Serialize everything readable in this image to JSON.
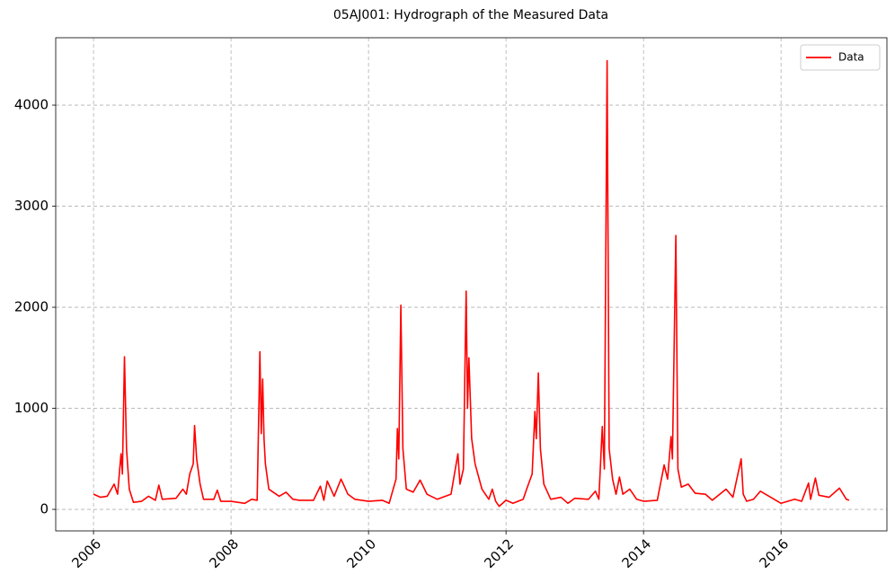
{
  "chart_data": {
    "type": "line",
    "title": "05AJ001: Hydrograph of the Measured Data",
    "x": [
      2006.0,
      2006.1,
      2006.2,
      2006.3,
      2006.35,
      2006.4,
      2006.42,
      2006.45,
      2006.48,
      2006.52,
      2006.58,
      2006.7,
      2006.8,
      2006.9,
      2006.95,
      2007.0,
      2007.2,
      2007.3,
      2007.35,
      2007.4,
      2007.45,
      2007.47,
      2007.5,
      2007.55,
      2007.6,
      2007.75,
      2007.8,
      2007.85,
      2008.0,
      2008.2,
      2008.3,
      2008.38,
      2008.42,
      2008.44,
      2008.46,
      2008.48,
      2008.5,
      2008.55,
      2008.7,
      2008.8,
      2008.9,
      2009.0,
      2009.2,
      2009.3,
      2009.35,
      2009.4,
      2009.5,
      2009.6,
      2009.7,
      2009.8,
      2010.0,
      2010.2,
      2010.3,
      2010.4,
      2010.42,
      2010.44,
      2010.47,
      2010.5,
      2010.55,
      2010.65,
      2010.75,
      2010.85,
      2011.0,
      2011.2,
      2011.3,
      2011.33,
      2011.38,
      2011.42,
      2011.44,
      2011.46,
      2011.5,
      2011.55,
      2011.65,
      2011.75,
      2011.8,
      2011.85,
      2011.9,
      2012.0,
      2012.1,
      2012.25,
      2012.3,
      2012.38,
      2012.42,
      2012.44,
      2012.47,
      2012.5,
      2012.55,
      2012.65,
      2012.8,
      2012.9,
      2013.0,
      2013.2,
      2013.3,
      2013.35,
      2013.4,
      2013.43,
      2013.47,
      2013.5,
      2013.55,
      2013.6,
      2013.65,
      2013.7,
      2013.8,
      2013.9,
      2014.0,
      2014.2,
      2014.3,
      2014.35,
      2014.4,
      2014.42,
      2014.47,
      2014.5,
      2014.55,
      2014.65,
      2014.75,
      2014.9,
      2015.0,
      2015.2,
      2015.3,
      2015.42,
      2015.45,
      2015.5,
      2015.6,
      2015.7,
      2015.8,
      2016.0,
      2016.2,
      2016.3,
      2016.4,
      2016.43,
      2016.5,
      2016.55,
      2016.7,
      2016.85,
      2016.95,
      2016.99
    ],
    "series": [
      {
        "name": "Data",
        "color": "#ff0000",
        "values": [
          150,
          120,
          130,
          250,
          150,
          550,
          350,
          1510,
          600,
          200,
          70,
          80,
          130,
          90,
          240,
          100,
          110,
          200,
          150,
          350,
          450,
          830,
          500,
          250,
          100,
          100,
          190,
          80,
          80,
          60,
          100,
          90,
          1560,
          750,
          1290,
          700,
          450,
          200,
          130,
          170,
          100,
          90,
          90,
          230,
          90,
          280,
          130,
          300,
          150,
          100,
          80,
          90,
          60,
          300,
          800,
          500,
          2020,
          600,
          200,
          170,
          290,
          150,
          100,
          150,
          550,
          250,
          400,
          2160,
          1000,
          1500,
          700,
          450,
          200,
          100,
          200,
          80,
          30,
          90,
          60,
          100,
          200,
          350,
          970,
          700,
          1350,
          600,
          250,
          100,
          120,
          60,
          110,
          100,
          180,
          100,
          820,
          400,
          4440,
          600,
          300,
          150,
          320,
          150,
          200,
          100,
          80,
          90,
          440,
          300,
          720,
          500,
          2710,
          400,
          220,
          250,
          160,
          150,
          90,
          200,
          120,
          500,
          150,
          80,
          100,
          180,
          140,
          60,
          100,
          80,
          260,
          100,
          310,
          140,
          120,
          210,
          100,
          90
        ]
      }
    ],
    "xlim": [
      2005.45,
      2017.54
    ],
    "xticks": [
      2006,
      2008,
      2010,
      2012,
      2014,
      2016
    ],
    "ylim": [
      -213,
      4667
    ],
    "yticks": [
      0,
      1000,
      2000,
      3000,
      4000
    ],
    "grid": true,
    "legend": "upper right"
  }
}
